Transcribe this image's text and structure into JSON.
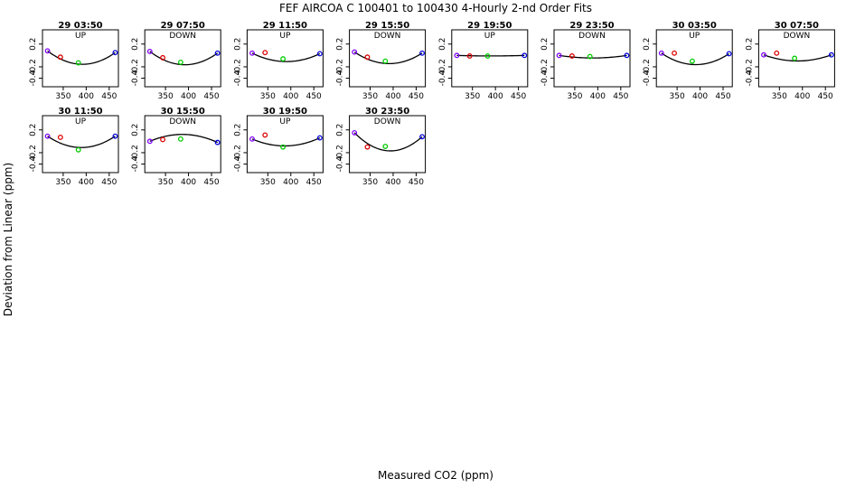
{
  "title": "FEF   AIRCOA C   100401 to 100430   4-Hourly 2-nd Order Fits",
  "xlabel": "Measured CO2 (ppm)",
  "ylabel": "Deviation from Linear (ppm)",
  "colors": {
    "p1": "#7f00ff",
    "p2": "#dd0000",
    "p3": "#00cc00",
    "p4": "#0000dd",
    "line": "#000000"
  },
  "chart_data": {
    "type": "scatter",
    "xlim": [
      305,
      470
    ],
    "ylim": [
      -0.55,
      0.45
    ],
    "x_ticks": [
      350,
      400,
      450
    ],
    "y_ticks": [
      -0.4,
      -0.2,
      0.2
    ],
    "grid": false,
    "x": [
      316,
      344,
      383,
      463
    ],
    "panels": [
      {
        "label": "29 03:50",
        "sub": "UP",
        "y": [
          0.08,
          -0.03,
          -0.13,
          0.05
        ],
        "fit": [
          0.0074,
          -9.52e-06
        ]
      },
      {
        "label": "29 07:50",
        "sub": "DOWN",
        "y": [
          0.07,
          -0.04,
          -0.12,
          0.04
        ],
        "fit": [
          0.00735,
          -9.52e-06
        ]
      },
      {
        "label": "29 11:50",
        "sub": "UP",
        "y": [
          0.04,
          0.05,
          -0.06,
          0.03
        ],
        "fit": [
          0.0048,
          -6.2e-06
        ]
      },
      {
        "label": "29 15:50",
        "sub": "DOWN",
        "y": [
          0.06,
          -0.03,
          -0.1,
          0.04
        ],
        "fit": [
          0.0065,
          -8.4e-06
        ]
      },
      {
        "label": "29 19:50",
        "sub": "UP",
        "y": [
          0.0,
          -0.01,
          -0.01,
          0.0
        ],
        "fit": [
          0.0003,
          -4e-07
        ]
      },
      {
        "label": "29 23:50",
        "sub": "DOWN",
        "y": [
          0.0,
          -0.01,
          -0.02,
          0.0
        ],
        "fit": [
          0.0015,
          -1.9e-06
        ]
      },
      {
        "label": "30 03:50",
        "sub": "UP",
        "y": [
          0.04,
          0.04,
          -0.1,
          0.03
        ],
        "fit": [
          0.0066,
          -8.5e-06
        ]
      },
      {
        "label": "30 07:50",
        "sub": "DOWN",
        "y": [
          0.01,
          0.04,
          -0.05,
          0.01
        ],
        "fit": [
          0.0036,
          -4.6e-06
        ]
      },
      {
        "label": "30 11:50",
        "sub": "UP",
        "y": [
          0.09,
          0.07,
          -0.15,
          0.09
        ],
        "fit": [
          0.0067,
          -8.7e-06
        ]
      },
      {
        "label": "30 15:50",
        "sub": "DOWN",
        "y": [
          0.0,
          0.03,
          0.04,
          -0.02
        ],
        "fit": [
          -0.0044,
          5.7e-06
        ]
      },
      {
        "label": "30 19:50",
        "sub": "UP",
        "y": [
          0.04,
          0.11,
          -0.1,
          0.06
        ],
        "fit": [
          0.0044,
          -5.7e-06
        ]
      },
      {
        "label": "30 23:50",
        "sub": "DOWN",
        "y": [
          0.15,
          -0.1,
          -0.09,
          0.08
        ],
        "fit": [
          0.0095,
          -1.22e-05
        ]
      }
    ]
  }
}
